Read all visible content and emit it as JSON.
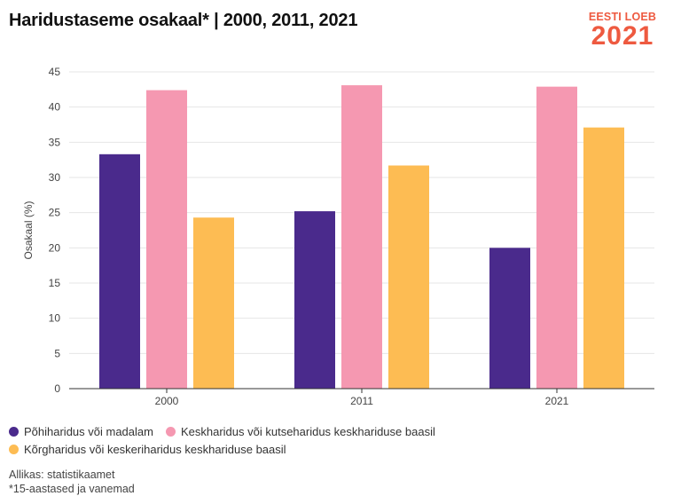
{
  "header": {
    "title": "Haridustaseme osakaal* | 2000, 2011, 2021",
    "logo_top": "EESTI LOEB",
    "logo_year": "2021"
  },
  "footer": {
    "source": "Allikas: statistikaamet",
    "note": "*15-aastased ja vanemad"
  },
  "colors": {
    "series1": "#4a2a8c",
    "series2": "#f598b1",
    "series3": "#fdbc53",
    "grid": "#e6e6e6",
    "axis": "#333333",
    "logo": "#ee5a40"
  },
  "chart_data": {
    "type": "bar",
    "title": "Haridustaseme osakaal* | 2000, 2011, 2021",
    "xlabel": "",
    "ylabel": "Osakaal (%)",
    "categories": [
      "2000",
      "2011",
      "2021"
    ],
    "ylim": [
      0,
      45
    ],
    "yticks": [
      0,
      5,
      10,
      15,
      20,
      25,
      30,
      35,
      40,
      45
    ],
    "grid": true,
    "legend": "bottom",
    "series": [
      {
        "name": "Põhiharidus või madalam",
        "values": [
          33.3,
          25.2,
          20.0
        ]
      },
      {
        "name": "Keskharidus või kutseharidus keskhariduse baasil",
        "values": [
          42.4,
          43.1,
          42.9
        ]
      },
      {
        "name": "Kõrgharidus või keskeriharidus keskhariduse baasil",
        "values": [
          24.3,
          31.7,
          37.1
        ]
      }
    ]
  }
}
